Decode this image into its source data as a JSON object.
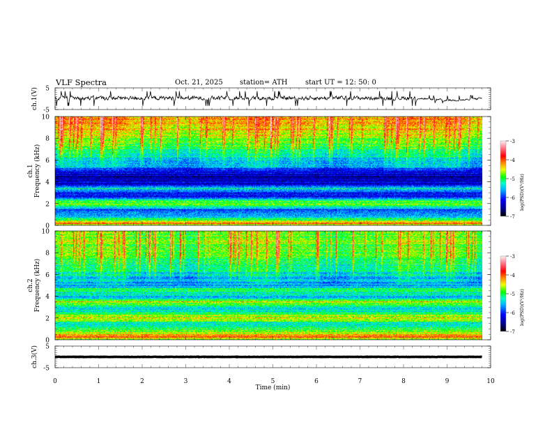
{
  "header": {
    "title": "VLF  Spectra",
    "date": "Oct. 21, 2025",
    "station": "station= ATH",
    "start": "start  UT  =    12: 50: 0"
  },
  "chart_data": [
    {
      "type": "line",
      "name": "ch1-waveform",
      "ylabel": "ch.1(V)",
      "ylim": [
        -5,
        5
      ],
      "yticks": [
        "5",
        "-5"
      ],
      "xlim": [
        0,
        10
      ],
      "x_end": 9.8,
      "mean": 0.3,
      "amplitude": 1.0,
      "color": "#000000"
    },
    {
      "type": "heatmap",
      "name": "ch1-spectrogram",
      "ylabel": "ch.1\nFrequency  (kHz)",
      "ylim": [
        0,
        10
      ],
      "yticks": [
        "0",
        "2",
        "4",
        "6",
        "8",
        "10"
      ],
      "xlim": [
        0,
        10
      ],
      "x_end": 9.8,
      "colorbar": {
        "label": "log(PSD)(V²/Hz)",
        "range": [
          -7,
          -3
        ],
        "ticks": [
          "-3",
          "-4",
          "-5",
          "-6",
          "-7"
        ]
      },
      "freq_profile_khz": [
        0,
        0.2,
        0.5,
        1,
        1.5,
        2,
        2.2,
        2.5,
        3,
        3.4,
        3.7,
        4,
        4.5,
        5,
        5.5,
        6,
        7,
        8,
        9,
        10
      ],
      "freq_profile_logpsd": [
        -5.2,
        -3.9,
        -5.0,
        -5.6,
        -5.9,
        -4.7,
        -4.8,
        -5.9,
        -6.2,
        -5.2,
        -6.2,
        -6.4,
        -6.5,
        -6.2,
        -5.6,
        -5.4,
        -5.1,
        -4.7,
        -4.4,
        -4.3
      ]
    },
    {
      "type": "heatmap",
      "name": "ch2-spectrogram",
      "ylabel": "ch.2\nFrequency  (kHz)",
      "ylim": [
        0,
        10
      ],
      "yticks": [
        "0",
        "2",
        "4",
        "6",
        "8",
        "10"
      ],
      "xlim": [
        0,
        10
      ],
      "x_end": 9.8,
      "colorbar": {
        "label": "log(PSD)(V²/Hz)",
        "range": [
          -7,
          -3
        ],
        "ticks": [
          "-3",
          "-4",
          "-5",
          "-6",
          "-7"
        ]
      },
      "freq_profile_khz": [
        0,
        0.3,
        0.6,
        1,
        1.5,
        2,
        2.2,
        2.6,
        3,
        3.5,
        4,
        4.5,
        5,
        5.5,
        6,
        7,
        8,
        9,
        10
      ],
      "freq_profile_logpsd": [
        -5.0,
        -4.0,
        -4.5,
        -5.0,
        -5.4,
        -4.3,
        -4.6,
        -5.3,
        -5.5,
        -4.4,
        -5.6,
        -5.0,
        -5.5,
        -5.6,
        -5.4,
        -5.1,
        -4.9,
        -4.8,
        -4.8
      ]
    },
    {
      "type": "line",
      "name": "ch3-waveform",
      "ylabel": "ch.3(V)",
      "ylim": [
        -5,
        5
      ],
      "yticks": [
        "5",
        "-5"
      ],
      "xlim": [
        0,
        10
      ],
      "x_end": 9.8,
      "mean": 0.0,
      "amplitude": 0.15,
      "color": "#000000"
    }
  ],
  "xaxis": {
    "label": "Time  (min)",
    "ticks": [
      "0",
      "1",
      "2",
      "3",
      "4",
      "5",
      "6",
      "7",
      "8",
      "9",
      "10"
    ]
  }
}
